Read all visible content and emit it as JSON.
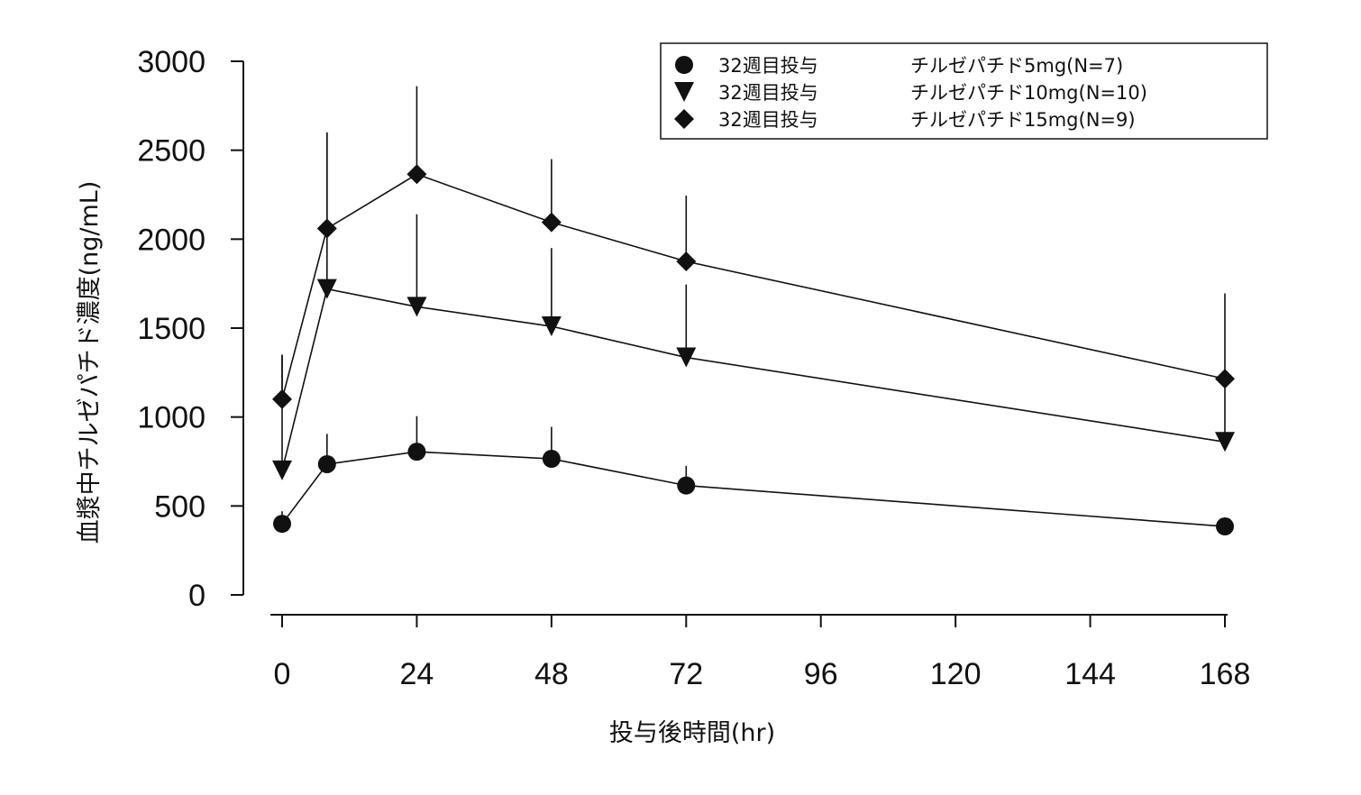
{
  "chart_data": {
    "type": "line",
    "xlabel": "投与後時間(hr)",
    "ylabel": "血漿中チルゼパチド濃度(ng/mL)",
    "xlim": [
      0,
      168
    ],
    "ylim": [
      0,
      3000
    ],
    "x_ticks": [
      "0",
      "24",
      "48",
      "72",
      "96",
      "120",
      "144",
      "168"
    ],
    "x_tick_values": [
      0,
      24,
      48,
      72,
      96,
      120,
      144,
      168
    ],
    "y_ticks": [
      "0",
      "500",
      "1000",
      "1500",
      "2000",
      "2500",
      "3000"
    ],
    "y_tick_values": [
      0,
      500,
      1000,
      1500,
      2000,
      2500,
      3000
    ],
    "legend_position": "top-right",
    "grid": false,
    "x": [
      0,
      8,
      24,
      48,
      72,
      168
    ],
    "series": [
      {
        "name": "32週目投与",
        "dose_label": "チルゼパチド5mg(N=7)",
        "marker": "circle",
        "values": [
          400,
          735,
          805,
          765,
          615,
          385
        ],
        "error_upper": [
          470,
          905,
          1005,
          945,
          725,
          null
        ]
      },
      {
        "name": "32週目投与",
        "dose_label": "チルゼパチド10mg(N=10)",
        "marker": "triangle-down",
        "values": [
          700,
          1720,
          1620,
          1510,
          1335,
          860
        ],
        "error_upper": [
          1350,
          2600,
          2140,
          1950,
          1745,
          1215
        ]
      },
      {
        "name": "32週目投与",
        "dose_label": "チルゼパチド15mg(N=9)",
        "marker": "diamond",
        "values": [
          1100,
          2060,
          2365,
          2095,
          1875,
          1215
        ],
        "error_upper": [
          1350,
          2600,
          2860,
          2450,
          2245,
          1695
        ]
      }
    ]
  }
}
